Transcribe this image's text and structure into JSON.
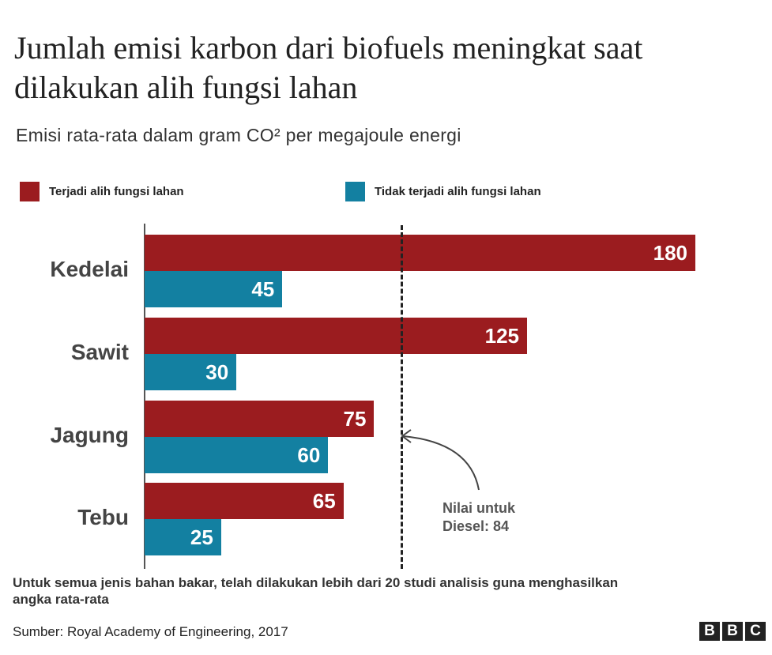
{
  "title": "Jumlah emisi karbon dari biofuels meningkat saat dilakukan alih fungsi lahan",
  "subtitle": "Emisi rata-rata dalam gram CO² per megajoule energi",
  "chart_data": {
    "type": "bar",
    "orientation": "horizontal",
    "categories": [
      "Kedelai",
      "Sawit",
      "Jagung",
      "Tebu"
    ],
    "series": [
      {
        "name": "Terjadi alih fungsi lahan",
        "color": "#9b1c1f",
        "values": [
          180,
          125,
          75,
          65
        ]
      },
      {
        "name": "Tidak terjadi alih fungsi lahan",
        "color": "#1380a1",
        "values": [
          45,
          30,
          60,
          25
        ]
      }
    ],
    "reference_line": {
      "value": 84,
      "label_line1": "Nilai untuk",
      "label_line2": "Diesel: 84"
    },
    "xlim": [
      0,
      180
    ],
    "legend_position": "top"
  },
  "footnote": "Untuk semua jenis bahan bakar,  telah dilakukan lebih dari 20 studi analisis guna menghasilkan angka rata-rata",
  "source": "Sumber: Royal Academy of Engineering, 2017",
  "logo": [
    "B",
    "B",
    "C"
  ]
}
